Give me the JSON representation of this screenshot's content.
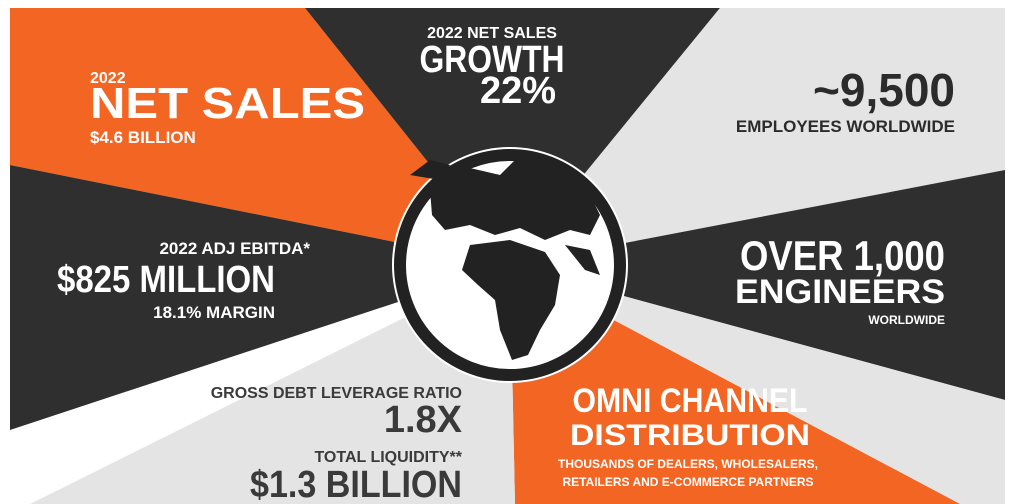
{
  "panels": [
    {
      "lines": [
        "2022",
        "NET SALES",
        "$4.6 BILLION"
      ]
    },
    {
      "lines": [
        "2022 NET SALES",
        "GROWTH",
        "22%"
      ]
    },
    {
      "lines": [
        "~9,500",
        "EMPLOYEES WORLDWIDE"
      ]
    },
    {
      "lines": [
        "2022 ADJ EBITDA*",
        "$825 MILLION",
        "18.1% MARGIN"
      ]
    },
    {
      "lines": [
        "OVER 1,000",
        "ENGINEERS",
        "WORLDWIDE"
      ]
    },
    {
      "lines": [
        "GROSS DEBT LEVERAGE RATIO",
        "1.8X",
        "TOTAL LIQUIDITY**",
        "$1.3 BILLION"
      ]
    },
    {
      "lines": [
        "OMNI CHANNEL",
        "DISTRIBUTION",
        "THOUSANDS OF DEALERS, WHOLESALERS,",
        "RETAILERS AND E-COMMERCE PARTNERS"
      ]
    }
  ]
}
